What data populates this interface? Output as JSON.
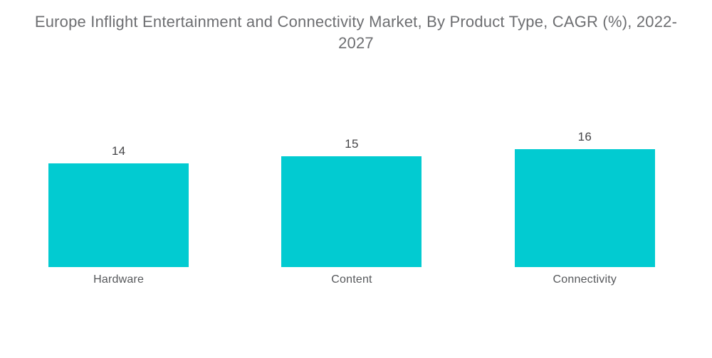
{
  "title": "Europe Inflight Entertainment and Connectivity Market, By Product Type, CAGR (%), 2022-2027",
  "chart_data": {
    "type": "bar",
    "title": "Europe Inflight Entertainment and Connectivity Market, By Product Type, CAGR (%), 2022-2027",
    "categories": [
      "Hardware",
      "Content",
      "Connectivity"
    ],
    "values": [
      14,
      15,
      16
    ],
    "value_labels": [
      "14",
      "15",
      "16"
    ],
    "xlabel": "",
    "ylabel": "",
    "ylim": [
      0,
      36
    ],
    "grid": false,
    "legend": false,
    "bar_color": "#02cbd1",
    "title_color": "#6d6e71",
    "value_label_color": "#454548",
    "category_label_color": "#55575a"
  }
}
